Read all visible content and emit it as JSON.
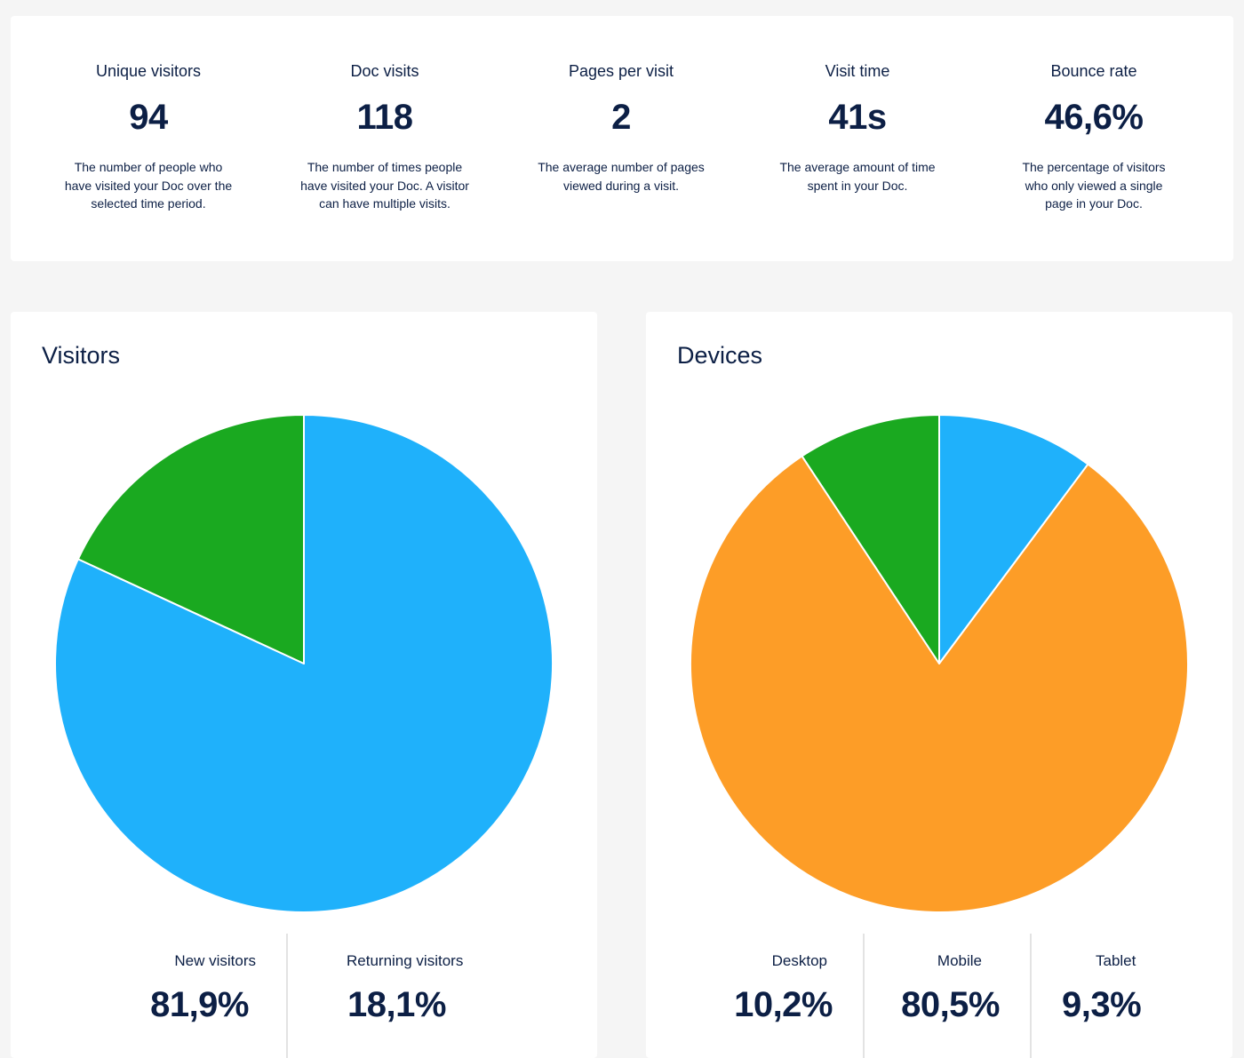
{
  "stats": [
    {
      "label": "Unique visitors",
      "value": "94",
      "description": "The number of people who have visited your Doc over the selected time period."
    },
    {
      "label": "Doc visits",
      "value": "118",
      "description": "The number of times people have visited your Doc. A visitor can have multiple visits."
    },
    {
      "label": "Pages per visit",
      "value": "2",
      "description": "The average number of pages viewed during a visit."
    },
    {
      "label": "Visit time",
      "value": "41s",
      "description": "The average amount of time spent in your Doc."
    },
    {
      "label": "Bounce rate",
      "value": "46,6%",
      "description": "The percentage of visitors who only viewed a single page in your Doc."
    }
  ],
  "visitors": {
    "title": "Visitors",
    "legend": [
      {
        "label": "New visitors",
        "value": "81,9%"
      },
      {
        "label": "Returning visitors",
        "value": "18,1%"
      }
    ]
  },
  "devices": {
    "title": "Devices",
    "legend": [
      {
        "label": "Desktop",
        "value": "10,2%"
      },
      {
        "label": "Mobile",
        "value": "80,5%"
      },
      {
        "label": "Tablet",
        "value": "9,3%"
      }
    ]
  },
  "chart_data": [
    {
      "type": "pie",
      "title": "Visitors",
      "categories": [
        "New visitors",
        "Returning visitors"
      ],
      "values": [
        81.9,
        18.1
      ],
      "colors": [
        "#1fb1fb",
        "#1aa920"
      ],
      "start": "12 o'clock, clockwise"
    },
    {
      "type": "pie",
      "title": "Devices",
      "categories": [
        "Desktop",
        "Mobile",
        "Tablet"
      ],
      "values": [
        10.2,
        80.5,
        9.3
      ],
      "colors": [
        "#1fb1fb",
        "#fd9d27",
        "#1aa920"
      ],
      "start": "12 o'clock, clockwise"
    }
  ]
}
